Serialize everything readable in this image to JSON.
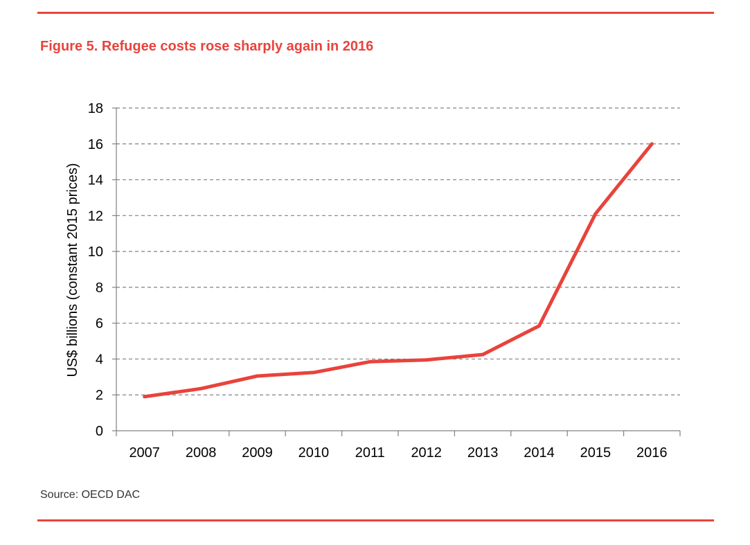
{
  "figure": {
    "title": "Figure 5. Refugee costs rose sharply again in 2016",
    "source": "Source: OECD DAC"
  },
  "colors": {
    "accent": "#e8433c",
    "line": "#e8433c",
    "grid": "#808080",
    "axis": "#808080"
  },
  "chart_data": {
    "type": "line",
    "title": "Figure 5. Refugee costs rose sharply again in 2016",
    "xlabel": "",
    "ylabel": "US$ billions (constant 2015 prices)",
    "categories": [
      "2007",
      "2008",
      "2009",
      "2010",
      "2011",
      "2012",
      "2013",
      "2014",
      "2015",
      "2016"
    ],
    "series": [
      {
        "values": [
          1.9,
          2.35,
          3.05,
          3.25,
          3.85,
          3.95,
          4.25,
          5.85,
          12.1,
          16.0
        ]
      }
    ],
    "ylim": [
      0,
      18
    ],
    "yticks": [
      0,
      2,
      4,
      6,
      8,
      10,
      12,
      14,
      16,
      18
    ],
    "grid": true,
    "grid_style": "dashed horizontal",
    "legend": "none"
  }
}
